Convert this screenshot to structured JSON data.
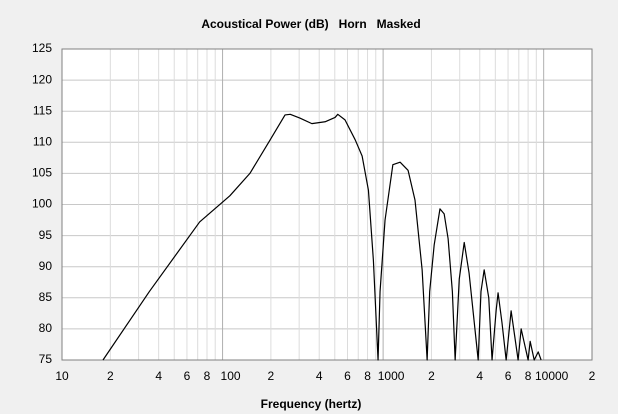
{
  "chart_data": {
    "type": "line",
    "title": "Acoustical Power (dB)   Horn   Masked",
    "x_label": "Frequency (hertz)",
    "xscale": "log",
    "grid": true,
    "xlim": [
      10,
      20000
    ],
    "ylim": [
      75,
      125
    ],
    "yticks": [
      75,
      80,
      85,
      90,
      95,
      100,
      105,
      110,
      115,
      120,
      125
    ],
    "xticks": [
      10,
      {
        "value": 20,
        "label": "2"
      },
      {
        "value": 40,
        "label": "4"
      },
      {
        "value": 60,
        "label": "6"
      },
      {
        "value": 80,
        "label": "8"
      },
      100,
      {
        "value": 200,
        "label": "2"
      },
      {
        "value": 400,
        "label": "4"
      },
      {
        "value": 600,
        "label": "6"
      },
      {
        "value": 800,
        "label": "8"
      },
      1000,
      {
        "value": 2000,
        "label": "2"
      },
      {
        "value": 4000,
        "label": "4"
      },
      {
        "value": 6000,
        "label": "6"
      },
      {
        "value": 8000,
        "label": "8"
      },
      10000,
      {
        "value": 20000,
        "label": "2"
      }
    ],
    "minor_xticks": [
      30,
      50,
      70,
      90,
      300,
      500,
      700,
      900,
      3000,
      5000,
      7000,
      9000
    ],
    "series": [
      {
        "name": "Horn",
        "color": "#000000",
        "x": [
          18,
          35,
          72,
          111,
          148,
          198,
          245,
          264,
          303,
          360,
          435,
          502,
          522,
          579,
          670,
          740,
          810,
          870,
          930,
          957,
          1028,
          1150,
          1276,
          1430,
          1580,
          1750,
          1880,
          1950,
          2080,
          2260,
          2400,
          2540,
          2700,
          2810,
          2980,
          3200,
          3430,
          3910,
          4070,
          4260,
          4550,
          4770,
          5060,
          5200,
          5500,
          5840,
          6270,
          6930,
          7240,
          8000,
          8240,
          8730,
          9250,
          9640
        ],
        "values": [
          75,
          86,
          97.2,
          101.4,
          105,
          110.4,
          114.4,
          114.5,
          113.9,
          113,
          113.3,
          114,
          114.5,
          113.6,
          110.4,
          107.8,
          102.3,
          91,
          75,
          86,
          97.5,
          106.4,
          106.8,
          105.5,
          100.7,
          89.5,
          75,
          86,
          93.5,
          99.3,
          98.5,
          94.5,
          86,
          75,
          88,
          93.9,
          89,
          75,
          86,
          89.5,
          85,
          75,
          83,
          85.8,
          81,
          75,
          82.9,
          75,
          80,
          75,
          78,
          75,
          76.3,
          75
        ]
      }
    ]
  }
}
